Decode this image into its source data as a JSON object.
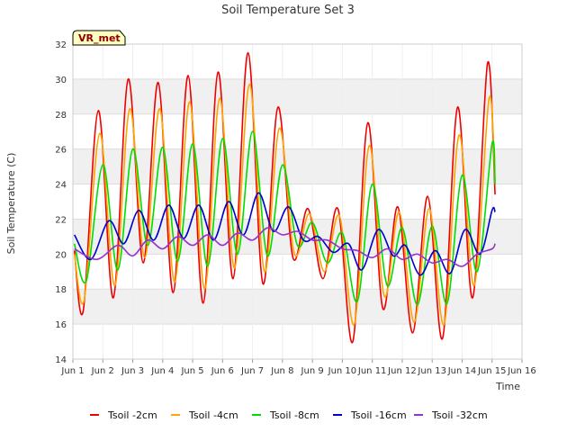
{
  "chart_data": {
    "type": "line",
    "title": "Soil Temperature Set 3",
    "xlabel": "Time",
    "ylabel": "Soil Temperature (C)",
    "badge": "VR_met",
    "xlim": [
      1,
      16
    ],
    "ylim": [
      14,
      32
    ],
    "x_ticks": [
      1,
      2,
      3,
      4,
      5,
      6,
      7,
      8,
      9,
      10,
      11,
      12,
      13,
      14,
      15,
      16
    ],
    "x_tick_labels": [
      "Jun 1",
      "Jun 2",
      "Jun 3",
      "Jun 4",
      "Jun 5",
      "Jun 6",
      "Jun 7",
      "Jun 8",
      "Jun 9",
      "Jun 10",
      "Jun 11",
      "Jun 12",
      "Jun 13",
      "Jun 14",
      "Jun 15",
      "Jun 16"
    ],
    "y_ticks": [
      14,
      16,
      18,
      20,
      22,
      24,
      26,
      28,
      30,
      32
    ],
    "y_tick_labels": [
      "14",
      "16",
      "18",
      "20",
      "22",
      "24",
      "26",
      "28",
      "30",
      "32"
    ],
    "grid": true,
    "legend_position": "bottom",
    "series": [
      {
        "name": "Tsoil -2cm",
        "color": "#ee0000",
        "points": [
          [
            1.05,
            20.2
          ],
          [
            1.35,
            16.8
          ],
          [
            1.85,
            28.2
          ],
          [
            2.35,
            17.5
          ],
          [
            2.85,
            30.0
          ],
          [
            3.35,
            19.5
          ],
          [
            3.85,
            29.8
          ],
          [
            4.35,
            17.8
          ],
          [
            4.85,
            30.2
          ],
          [
            5.35,
            17.2
          ],
          [
            5.85,
            30.4
          ],
          [
            6.35,
            18.6
          ],
          [
            6.85,
            31.5
          ],
          [
            7.35,
            18.3
          ],
          [
            7.85,
            28.4
          ],
          [
            8.35,
            19.8
          ],
          [
            8.85,
            22.6
          ],
          [
            9.35,
            18.6
          ],
          [
            9.85,
            22.6
          ],
          [
            10.35,
            15.0
          ],
          [
            10.85,
            27.5
          ],
          [
            11.35,
            16.9
          ],
          [
            11.85,
            22.7
          ],
          [
            12.35,
            15.5
          ],
          [
            12.85,
            23.3
          ],
          [
            13.35,
            15.2
          ],
          [
            13.85,
            28.4
          ],
          [
            14.35,
            17.5
          ],
          [
            14.85,
            30.9
          ],
          [
            15.1,
            23.4
          ]
        ]
      },
      {
        "name": "Tsoil -4cm",
        "color": "#ffa500",
        "points": [
          [
            1.05,
            20.0
          ],
          [
            1.38,
            17.4
          ],
          [
            1.9,
            26.9
          ],
          [
            2.4,
            18.2
          ],
          [
            2.9,
            28.3
          ],
          [
            3.4,
            19.8
          ],
          [
            3.9,
            28.3
          ],
          [
            4.4,
            18.4
          ],
          [
            4.9,
            28.7
          ],
          [
            5.4,
            18.0
          ],
          [
            5.9,
            28.9
          ],
          [
            6.4,
            19.2
          ],
          [
            6.9,
            29.7
          ],
          [
            7.4,
            19.0
          ],
          [
            7.9,
            27.2
          ],
          [
            8.4,
            20.0
          ],
          [
            8.9,
            22.3
          ],
          [
            9.4,
            19.0
          ],
          [
            9.9,
            22.2
          ],
          [
            10.4,
            16.0
          ],
          [
            10.9,
            26.2
          ],
          [
            11.4,
            17.6
          ],
          [
            11.9,
            22.4
          ],
          [
            12.4,
            16.1
          ],
          [
            12.9,
            22.6
          ],
          [
            13.4,
            16.0
          ],
          [
            13.9,
            26.8
          ],
          [
            14.4,
            18.2
          ],
          [
            14.9,
            28.9
          ],
          [
            15.1,
            24.0
          ]
        ]
      },
      {
        "name": "Tsoil -8cm",
        "color": "#00dd00",
        "points": [
          [
            1.05,
            20.6
          ],
          [
            1.45,
            18.5
          ],
          [
            2.0,
            25.1
          ],
          [
            2.5,
            19.1
          ],
          [
            3.0,
            26.0
          ],
          [
            3.5,
            20.5
          ],
          [
            4.0,
            26.1
          ],
          [
            4.5,
            19.6
          ],
          [
            5.0,
            26.3
          ],
          [
            5.5,
            19.3
          ],
          [
            6.0,
            26.6
          ],
          [
            6.5,
            20.0
          ],
          [
            7.0,
            27.0
          ],
          [
            7.5,
            19.9
          ],
          [
            8.0,
            25.1
          ],
          [
            8.5,
            20.5
          ],
          [
            9.0,
            21.8
          ],
          [
            9.5,
            19.5
          ],
          [
            10.0,
            21.2
          ],
          [
            10.5,
            17.3
          ],
          [
            11.0,
            24.0
          ],
          [
            11.5,
            18.2
          ],
          [
            12.0,
            21.5
          ],
          [
            12.5,
            17.1
          ],
          [
            13.0,
            21.6
          ],
          [
            13.5,
            17.2
          ],
          [
            14.0,
            24.5
          ],
          [
            14.5,
            19.0
          ],
          [
            15.0,
            26.3
          ],
          [
            15.1,
            24.0
          ]
        ]
      },
      {
        "name": "Tsoil -16cm",
        "color": "#0000cc",
        "points": [
          [
            1.05,
            21.1
          ],
          [
            1.6,
            19.7
          ],
          [
            2.2,
            21.9
          ],
          [
            2.7,
            20.6
          ],
          [
            3.2,
            22.5
          ],
          [
            3.7,
            20.8
          ],
          [
            4.2,
            22.8
          ],
          [
            4.7,
            20.9
          ],
          [
            5.2,
            22.8
          ],
          [
            5.7,
            20.8
          ],
          [
            6.2,
            23.0
          ],
          [
            6.7,
            21.1
          ],
          [
            7.2,
            23.5
          ],
          [
            7.7,
            21.3
          ],
          [
            8.2,
            22.7
          ],
          [
            8.7,
            20.8
          ],
          [
            9.2,
            21.0
          ],
          [
            9.7,
            20.1
          ],
          [
            10.2,
            20.6
          ],
          [
            10.65,
            19.1
          ],
          [
            11.2,
            21.4
          ],
          [
            11.7,
            19.9
          ],
          [
            12.1,
            20.5
          ],
          [
            12.6,
            18.8
          ],
          [
            13.1,
            20.2
          ],
          [
            13.6,
            18.9
          ],
          [
            14.1,
            21.4
          ],
          [
            14.6,
            20.0
          ],
          [
            15.0,
            22.5
          ],
          [
            15.1,
            22.4
          ]
        ]
      },
      {
        "name": "Tsoil -32cm",
        "color": "#9932cc",
        "points": [
          [
            1.05,
            20.3
          ],
          [
            1.8,
            19.7
          ],
          [
            2.5,
            20.5
          ],
          [
            3.0,
            19.9
          ],
          [
            3.5,
            20.8
          ],
          [
            4.0,
            20.3
          ],
          [
            4.5,
            21.0
          ],
          [
            5.0,
            20.5
          ],
          [
            5.5,
            21.1
          ],
          [
            6.0,
            20.5
          ],
          [
            6.5,
            21.2
          ],
          [
            7.0,
            20.8
          ],
          [
            7.5,
            21.5
          ],
          [
            8.0,
            21.1
          ],
          [
            8.5,
            21.3
          ],
          [
            9.0,
            20.8
          ],
          [
            9.5,
            20.8
          ],
          [
            10.0,
            20.3
          ],
          [
            10.5,
            20.2
          ],
          [
            11.0,
            19.8
          ],
          [
            11.5,
            20.3
          ],
          [
            12.0,
            19.7
          ],
          [
            12.5,
            20.0
          ],
          [
            13.0,
            19.5
          ],
          [
            13.5,
            19.7
          ],
          [
            14.0,
            19.3
          ],
          [
            14.5,
            20.0
          ],
          [
            15.0,
            20.3
          ],
          [
            15.1,
            20.6
          ]
        ]
      }
    ]
  }
}
